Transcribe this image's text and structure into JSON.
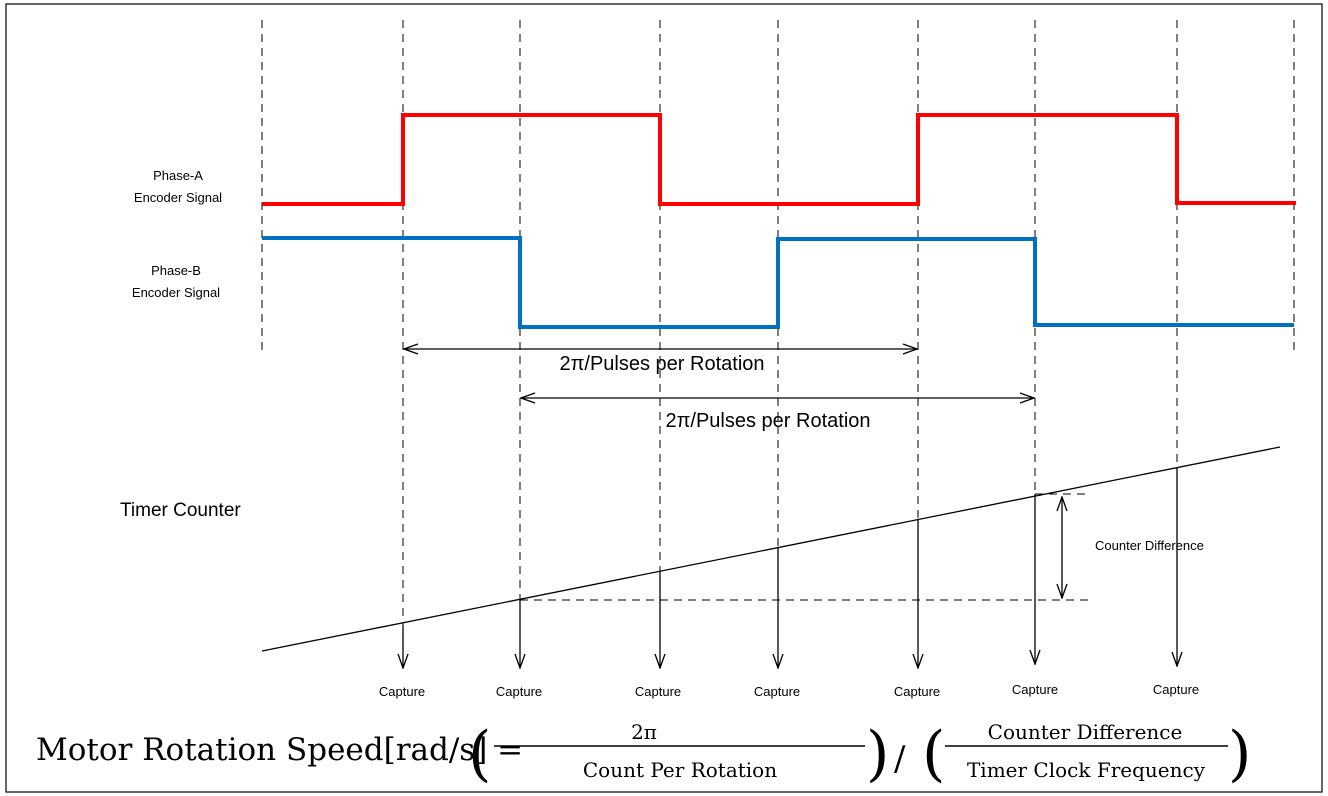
{
  "signals": {
    "phase_a": {
      "label_line1": "Phase-A",
      "label_line2": "Encoder Signal",
      "color": "#ff0000"
    },
    "phase_b": {
      "label_line1": "Phase-B",
      "label_line2": "Encoder Signal",
      "color": "#0070c0"
    }
  },
  "intervals": [
    {
      "label": "2π/Pulses per Rotation"
    },
    {
      "label": "2π/Pulses per Rotation"
    }
  ],
  "timer": {
    "label": "Timer Counter",
    "difference_label": "Counter Difference"
  },
  "captures": [
    "Capture",
    "Capture",
    "Capture",
    "Capture",
    "Capture",
    "Capture",
    "Capture"
  ],
  "formula": {
    "lhs": "Motor Rotation Speed[rad/s] =",
    "num1": "2π",
    "den1": "Count Per Rotation",
    "divider": "/",
    "num2": "Counter Difference",
    "den2": "Timer Clock Frequency"
  }
}
